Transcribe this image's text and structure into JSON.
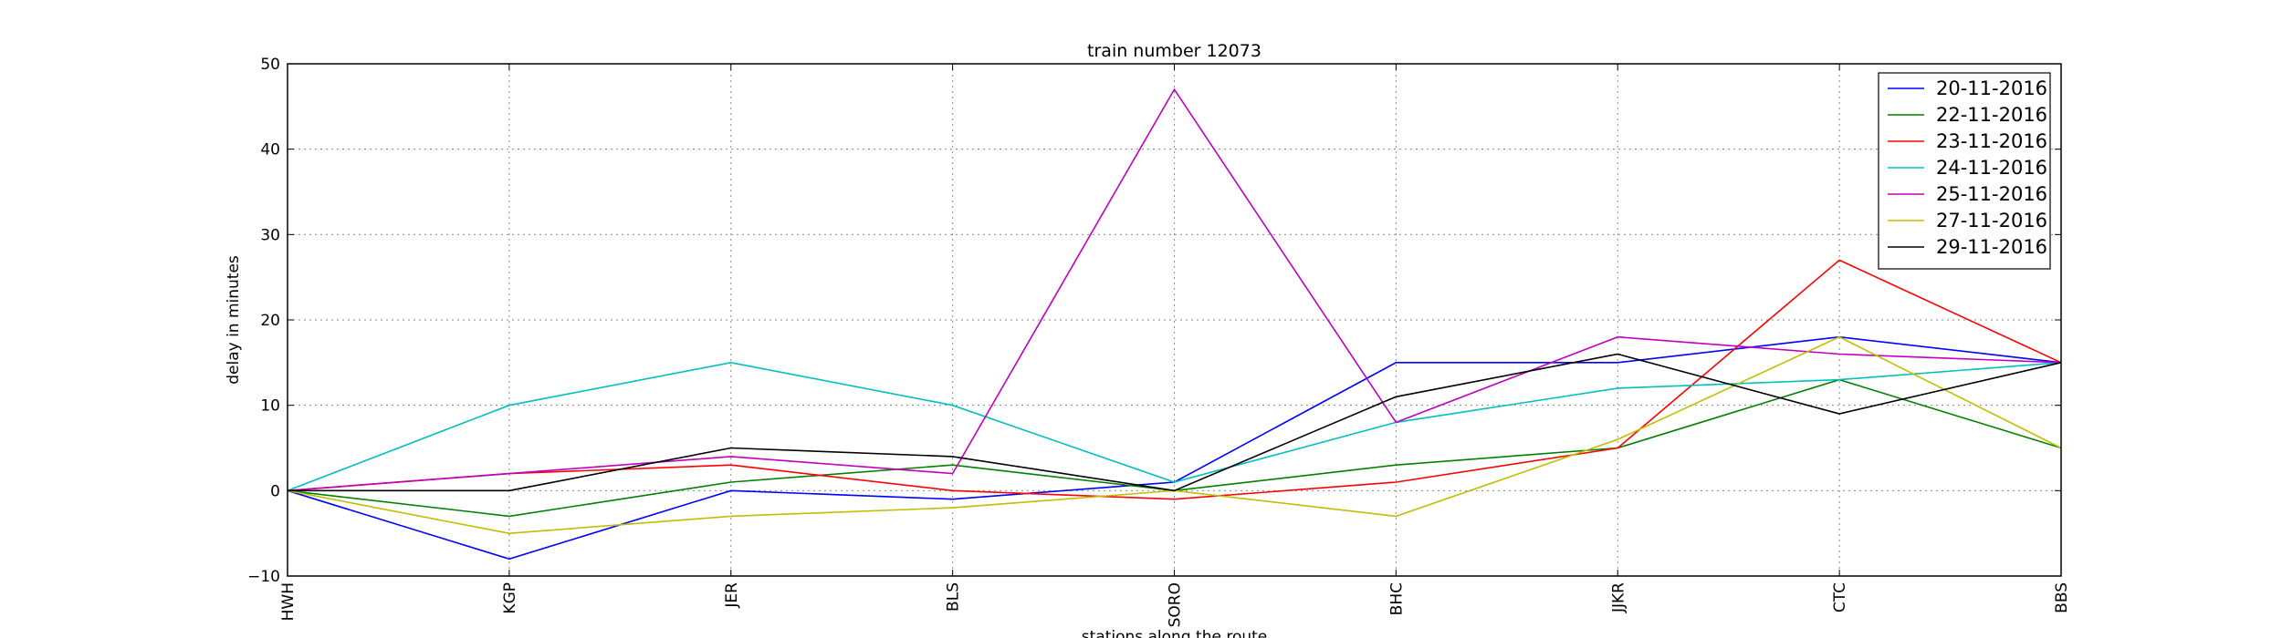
{
  "chart_data": {
    "type": "line",
    "title": "train number 12073",
    "xlabel": "stations along the route",
    "ylabel": "delay in minutes",
    "categories": [
      "HWH",
      "KGP",
      "JER",
      "BLS",
      "SORO",
      "BHC",
      "JJKR",
      "CTC",
      "BBS"
    ],
    "ylim": [
      -10,
      50
    ],
    "yticks": [
      -10,
      0,
      10,
      20,
      30,
      40,
      50
    ],
    "grid": true,
    "legend_position": "top-right",
    "series": [
      {
        "name": "20-11-2016",
        "color": "#0000ff",
        "values": [
          0,
          -8,
          0,
          -1,
          1,
          15,
          15,
          18,
          15
        ]
      },
      {
        "name": "22-11-2016",
        "color": "#008000",
        "values": [
          0,
          -3,
          1,
          3,
          0,
          3,
          5,
          13,
          5
        ]
      },
      {
        "name": "23-11-2016",
        "color": "#ff0000",
        "values": [
          0,
          2,
          3,
          0,
          -1,
          1,
          5,
          27,
          15
        ]
      },
      {
        "name": "24-11-2016",
        "color": "#00bfbf",
        "values": [
          0,
          10,
          15,
          10,
          1,
          8,
          12,
          13,
          15
        ]
      },
      {
        "name": "25-11-2016",
        "color": "#bf00bf",
        "values": [
          0,
          2,
          4,
          2,
          47,
          8,
          18,
          16,
          15
        ]
      },
      {
        "name": "27-11-2016",
        "color": "#bfbf00",
        "values": [
          0,
          -5,
          -3,
          -2,
          0,
          -3,
          6,
          18,
          5
        ]
      },
      {
        "name": "29-11-2016",
        "color": "#000000",
        "values": [
          0,
          0,
          5,
          4,
          0,
          11,
          16,
          9,
          15
        ]
      }
    ]
  }
}
